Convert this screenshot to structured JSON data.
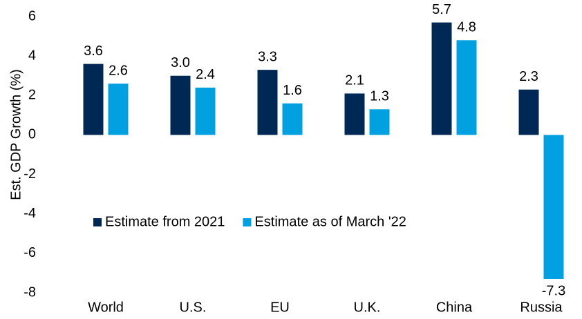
{
  "chart_data": {
    "type": "bar",
    "ylabel": "Est. GDP Growth (%)",
    "categories": [
      "World",
      "U.S.",
      "EU",
      "U.K.",
      "China",
      "Russia"
    ],
    "series": [
      {
        "name": "Estimate from 2021",
        "color": "#002855",
        "values": [
          3.6,
          3,
          3.3,
          2.1,
          5.7,
          2.3
        ],
        "value_labels": [
          "3.6",
          "3.0",
          "3.3",
          "2.1",
          "5.7",
          "2.3"
        ]
      },
      {
        "name": "Estimate as of March '22",
        "color": "#00a0e1",
        "values": [
          2.6,
          2.4,
          1.6,
          1.3,
          4.8,
          -7.3
        ],
        "value_labels": [
          "2.6",
          "2.4",
          "1.6",
          "1.3",
          "4.8",
          "-7.3"
        ]
      }
    ],
    "ylim": [
      -8,
      6
    ],
    "yticks": [
      6,
      4,
      2,
      0,
      -2,
      -4,
      -6,
      -8
    ],
    "grid": false,
    "legend": "center-left"
  }
}
